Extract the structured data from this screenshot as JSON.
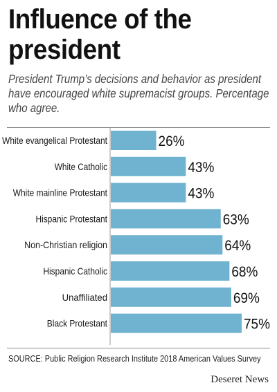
{
  "title": "Influence of the president",
  "subtitle": "President Trump’s decisions and behavior as president have encouraged white supremacist groups. Percentage who agree.",
  "source": "SOURCE: Public Religion Research Institute 2018 American Values Survey",
  "brand": "Deseret News",
  "colors": {
    "bar": "#6fb3d0",
    "text": "#111111",
    "label": "#1a1a1a"
  },
  "chart_data": {
    "type": "bar",
    "orientation": "horizontal",
    "categories": [
      "White evangelical Protestant",
      "White Catholic",
      "White mainline Protestant",
      "Hispanic Protestant",
      "Non-Christian religion",
      "Hispanic Catholic",
      "Unaffiliated",
      "Black Protestant"
    ],
    "values": [
      26,
      43,
      43,
      63,
      64,
      68,
      69,
      75
    ],
    "value_labels": [
      "26%",
      "43%",
      "43%",
      "63%",
      "64%",
      "68%",
      "69%",
      "75%"
    ],
    "xlim": [
      0,
      75
    ],
    "grid": false
  }
}
